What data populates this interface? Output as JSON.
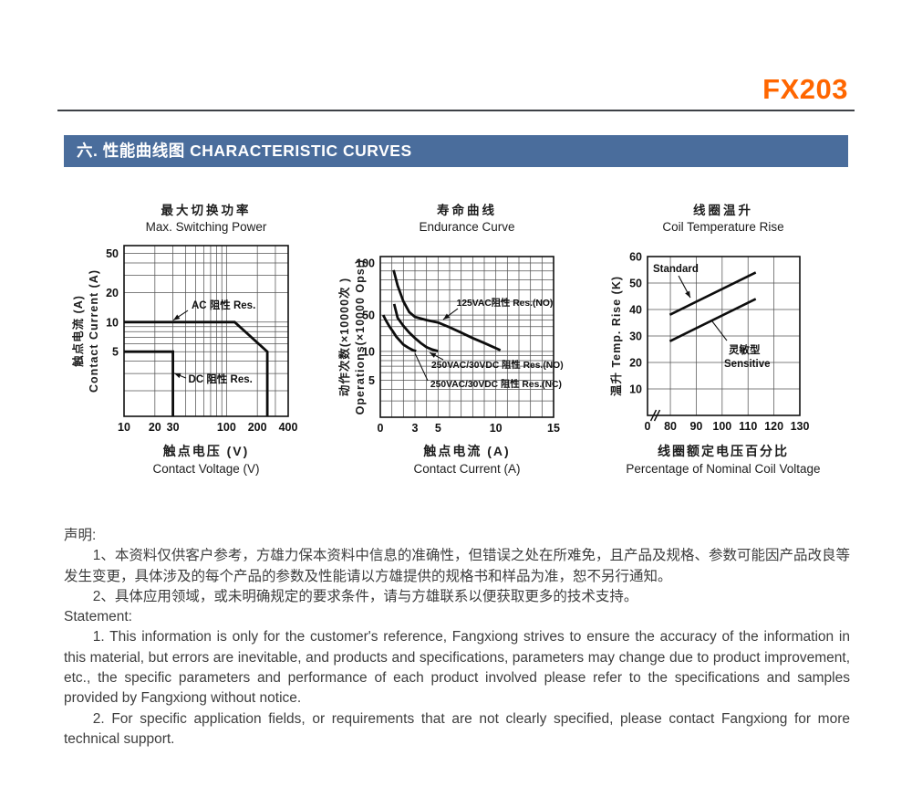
{
  "page": {
    "product_code": "FX203",
    "section_title": "六. 性能曲线图 CHARACTERISTIC CURVES",
    "accent_color": "#FF6600",
    "banner_color": "#4A6D9C"
  },
  "statement": {
    "cn_heading": "声明:",
    "cn_items": [
      "1、本资料仅供客户参考，方雄力保本资料中信息的准确性，但错误之处在所难免，且产品及规格、参数可能因产品改良等发生变更，具体涉及的每个产品的参数及性能请以方雄提供的规格书和样品为准，恕不另行通知。",
      "2、具体应用领域，或未明确规定的要求条件，请与方雄联系以便获取更多的技术支持。"
    ],
    "en_heading": "Statement:",
    "en_items": [
      "1. This information is only for the customer's reference, Fangxiong strives to ensure the accuracy of the information in this material, but errors are inevitable, and products and specifications, parameters may change due to product improvement, etc., the specific parameters and performance of each product involved please refer to the specifications and samples provided by Fangxiong without notice.",
      "2. For specific application fields, or requirements that are not clearly specified, please contact Fangxiong for more technical support."
    ]
  },
  "chart_data": [
    {
      "type": "line",
      "title_cn": "最大切换功率",
      "title_en": "Max. Switching Power",
      "xlabel_cn": "触点电压 (V)",
      "xlabel_en": "Contact Voltage (V)",
      "ylabel_cn": "触点电流 (A)",
      "ylabel_en": "Contact Current (A)",
      "x_axis": {
        "interp": "log",
        "anchors": [
          [
            10,
            0
          ],
          [
            400,
            1
          ]
        ],
        "grid": [
          20,
          30,
          40,
          50,
          60,
          70,
          80,
          90,
          100,
          200,
          300
        ],
        "ticks": [
          [
            10,
            "10"
          ],
          [
            20,
            "20"
          ],
          [
            30,
            "30"
          ],
          [
            100,
            "100"
          ],
          [
            200,
            "200"
          ],
          [
            400,
            "400"
          ]
        ]
      },
      "y_axis": {
        "interp": "log",
        "anchors": [
          [
            60,
            0
          ],
          [
            1.1,
            1
          ]
        ],
        "grid": [
          2,
          3,
          4,
          5,
          6,
          7,
          8,
          9,
          10,
          20,
          30,
          40,
          50
        ],
        "ticks": [
          [
            5,
            "5"
          ],
          [
            10,
            "10"
          ],
          [
            20,
            "20"
          ],
          [
            50,
            "50"
          ]
        ]
      },
      "series": [
        {
          "name": "AC 阻性 Res.",
          "points": [
            [
              10,
              10
            ],
            [
              120,
              10
            ],
            [
              250,
              5
            ],
            [
              250,
              1.1
            ]
          ]
        },
        {
          "name": "DC 阻性 Res.",
          "points": [
            [
              10,
              5
            ],
            [
              30,
              5
            ],
            [
              30,
              1.1
            ]
          ]
        }
      ],
      "annotations": [
        {
          "text": "AC 阻性 Res.",
          "fx": 0.411,
          "fy": 0.369,
          "size": 11.5
        },
        {
          "text": "DC 阻性 Res.",
          "fx": 0.392,
          "fy": 0.802,
          "size": 11.5
        }
      ],
      "leaders": [
        {
          "x1": 0.389,
          "y1": 0.38,
          "x2": 0.3,
          "y2": 0.437,
          "head": true
        },
        {
          "x1": 0.378,
          "y1": 0.776,
          "x2": 0.306,
          "y2": 0.748,
          "head": true
        }
      ]
    },
    {
      "type": "line",
      "title_cn": "寿命曲线",
      "title_en": "Endurance Curve",
      "xlabel_cn": "触点电流 (A)",
      "xlabel_en": "Contact Current (A)",
      "ylabel_cn": "动作次数(×10000次 )",
      "ylabel_en": "Operations(×10000 Ops.)",
      "x_axis": {
        "interp": "linear",
        "anchors": [
          [
            0,
            0
          ],
          [
            15,
            1
          ]
        ],
        "grid": [
          1,
          2,
          3,
          4,
          5,
          6,
          7,
          8,
          9,
          10,
          11,
          12,
          13,
          14
        ],
        "ticks": [
          [
            0,
            "0"
          ],
          [
            3,
            "3"
          ],
          [
            5,
            "5"
          ],
          [
            10,
            "10"
          ],
          [
            15,
            "15"
          ]
        ]
      },
      "y_axis": {
        "interp": "log",
        "anchors": [
          [
            100,
            0.04
          ],
          [
            50,
            0.364
          ],
          [
            10,
            0.59
          ],
          [
            5,
            0.77
          ],
          [
            2,
            1
          ]
        ],
        "grid": [
          3,
          4,
          5,
          6,
          7,
          8,
          9,
          10,
          20,
          30,
          40,
          50,
          60,
          70,
          80,
          90,
          100
        ],
        "ticks": [
          [
            5,
            "5"
          ],
          [
            10,
            "10"
          ],
          [
            50,
            "50"
          ],
          [
            100,
            "100"
          ]
        ]
      },
      "series": [
        {
          "name": "125VAC阻性 Res.(NO)",
          "points": [
            [
              1.15,
              91
            ],
            [
              1.5,
              74
            ],
            [
              2,
              60
            ],
            [
              2.5,
              52
            ],
            [
              3,
              46
            ],
            [
              4,
              40
            ],
            [
              5,
              36
            ],
            [
              6,
              29
            ],
            [
              7,
              23
            ],
            [
              8,
              18
            ],
            [
              9,
              14.5
            ],
            [
              10,
              11.5
            ],
            [
              10.4,
              10.5
            ]
          ]
        },
        {
          "name": "250VAC/30VDC 阻性 Res.(NO)",
          "points": [
            [
              1.2,
              58
            ],
            [
              1.5,
              44
            ],
            [
              2,
              31
            ],
            [
              2.5,
              23
            ],
            [
              3,
              18
            ],
            [
              3.5,
              14.5
            ],
            [
              4,
              12
            ],
            [
              4.5,
              10.8
            ],
            [
              5,
              10.1
            ]
          ]
        },
        {
          "name": "250VAC/30VDC 阻性 Res.(NC)",
          "points": [
            [
              0.25,
              50
            ],
            [
              0.5,
              39
            ],
            [
              0.8,
              30
            ],
            [
              1.1,
              24
            ],
            [
              1.4,
              19
            ],
            [
              1.7,
              16
            ],
            [
              2,
              13.5
            ],
            [
              2.4,
              11.8
            ],
            [
              2.8,
              10.6
            ],
            [
              3.1,
              10.1
            ]
          ]
        }
      ],
      "annotations": [
        {
          "text": "125VAC阻性 Res.(NO)",
          "fx": 0.44,
          "fy": 0.307,
          "size": 10.3
        },
        {
          "text": "250VAC/30VDC 阻性 Res.(NO)",
          "fx": 0.295,
          "fy": 0.693,
          "size": 10.3
        },
        {
          "text": "250VAC/30VDC 阻性 Res.(NC)",
          "fx": 0.289,
          "fy": 0.8125,
          "size": 10.3
        }
      ],
      "leaders": [
        {
          "x1": 0.447,
          "y1": 0.324,
          "x2": 0.363,
          "y2": 0.392,
          "head": true
        },
        {
          "x1": 0.363,
          "y1": 0.642,
          "x2": 0.284,
          "y2": 0.597,
          "head": true
        },
        {
          "x1": 0.274,
          "y1": 0.773,
          "x2": 0.2,
          "y2": 0.602,
          "head": false
        }
      ]
    },
    {
      "type": "line",
      "title_cn": "线圈温升",
      "title_en": "Coil Temperature Rise",
      "xlabel_cn": "线圈额定电压百分比",
      "xlabel_en": "Percentage of Nominal Coil Voltage",
      "ylabel_cn": "温升 Temp. Rise (K)",
      "ylabel_en": "",
      "x_axis": {
        "interp": "linear",
        "anchors": [
          [
            0,
            0
          ],
          [
            80,
            0.15
          ],
          [
            130,
            1
          ]
        ],
        "grid": [
          80,
          90,
          100,
          110,
          120,
          130
        ],
        "ticks": [
          [
            0,
            "0"
          ],
          [
            80,
            "80"
          ],
          [
            90,
            "90"
          ],
          [
            100,
            "100"
          ],
          [
            110,
            "110"
          ],
          [
            120,
            "120"
          ],
          [
            130,
            "130"
          ]
        ],
        "break_frac": 0.045
      },
      "y_axis": {
        "interp": "linear",
        "anchors": [
          [
            60,
            0
          ],
          [
            0,
            1
          ]
        ],
        "grid": [
          10,
          20,
          30,
          40,
          50
        ],
        "ticks": [
          [
            10,
            "10"
          ],
          [
            20,
            "20"
          ],
          [
            30,
            "30"
          ],
          [
            40,
            "40"
          ],
          [
            50,
            "50"
          ],
          [
            60,
            "60"
          ]
        ]
      },
      "series": [
        {
          "name": "Standard",
          "points": [
            [
              78,
              38
            ],
            [
              113,
              54
            ]
          ]
        },
        {
          "name": "灵敏型 Sensitive",
          "points": [
            [
              78,
              28
            ],
            [
              113,
              44
            ]
          ]
        }
      ],
      "annotations": [
        {
          "text": "Standard",
          "fx": 0.036,
          "fy": 0.098,
          "size": 11.5
        },
        {
          "text": "灵敏型",
          "fx": 0.533,
          "fy": 0.609,
          "size": 11.5
        },
        {
          "text": "Sensitive",
          "fx": 0.503,
          "fy": 0.695,
          "size": 11.5
        }
      ],
      "leaders": [
        {
          "x1": 0.204,
          "y1": 0.121,
          "x2": 0.281,
          "y2": 0.259,
          "head": true
        },
        {
          "x1": 0.521,
          "y1": 0.529,
          "x2": 0.425,
          "y2": 0.408,
          "head": false
        }
      ]
    }
  ]
}
